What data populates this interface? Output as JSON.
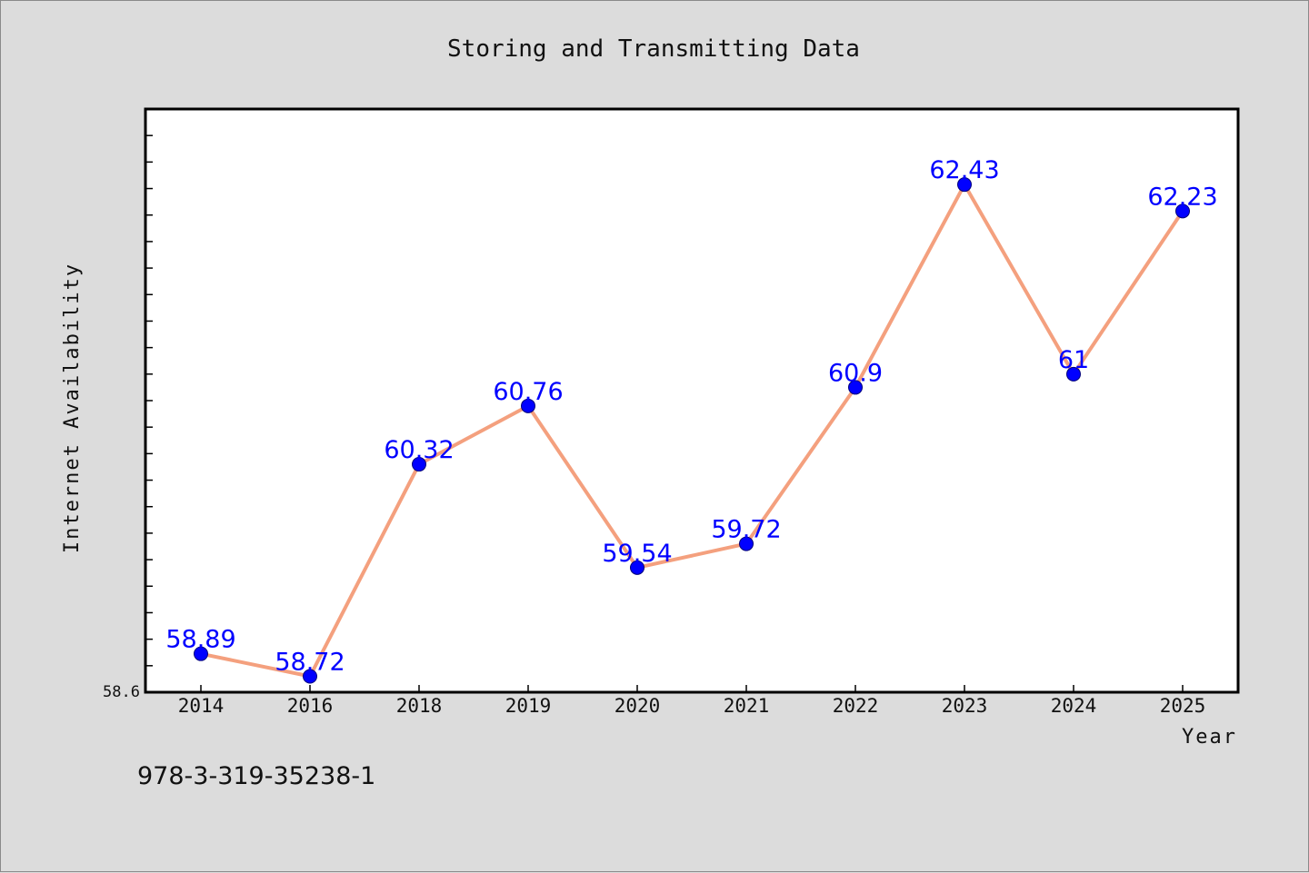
{
  "footer_text": "978-3-319-35238-1",
  "colors": {
    "background": "#dcdcdc",
    "plot_background": "#ffffff",
    "line": "#f4a07e",
    "marker": "#0000ff",
    "data_label": "#0000ff"
  },
  "chart_data": {
    "type": "line",
    "title": "Storing and Transmitting Data",
    "xlabel": "Year",
    "ylabel": "Internet Availability",
    "categories": [
      "2014",
      "2016",
      "2018",
      "2019",
      "2020",
      "2021",
      "2022",
      "2023",
      "2024",
      "2025"
    ],
    "series": [
      {
        "values": [
          58.89,
          58.72,
          60.32,
          60.76,
          59.54,
          59.72,
          60.9,
          62.43,
          61,
          62.23
        ],
        "labels": [
          "58.89",
          "58.72",
          "60.32",
          "60.76",
          "59.54",
          "59.72",
          "60.9",
          "62.43",
          "61",
          "62.23"
        ]
      }
    ],
    "y_min_label": "58.6",
    "ylim": [
      58.6,
      63.0
    ],
    "y_minor_tick_step": 0.2,
    "grid": false,
    "legend": "none"
  }
}
